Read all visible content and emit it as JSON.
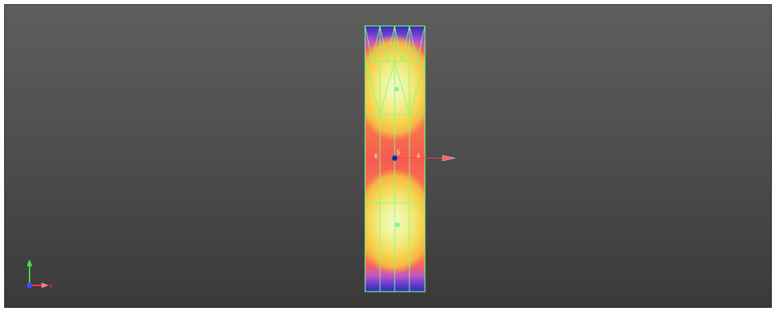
{
  "viewport": {
    "background_top": "#5e5e5e",
    "background_bottom": "#3a3a3a"
  },
  "model": {
    "mesh_color": "#7dff7d",
    "contour_colors": [
      "#2b1fb8",
      "#6a2fd8",
      "#c94acb",
      "#ff5a5a",
      "#ff9a3c",
      "#ffd34d",
      "#f7f08f",
      "#fafad0"
    ],
    "node_labels": [
      "6",
      "5",
      "4"
    ]
  },
  "axes": {
    "x_label": "x",
    "y_label": "y",
    "x_color": "#ff3b3b",
    "y_color": "#46e046",
    "origin_color": "#3b4bff"
  },
  "load_arrow": {
    "color": "#ff4040"
  }
}
